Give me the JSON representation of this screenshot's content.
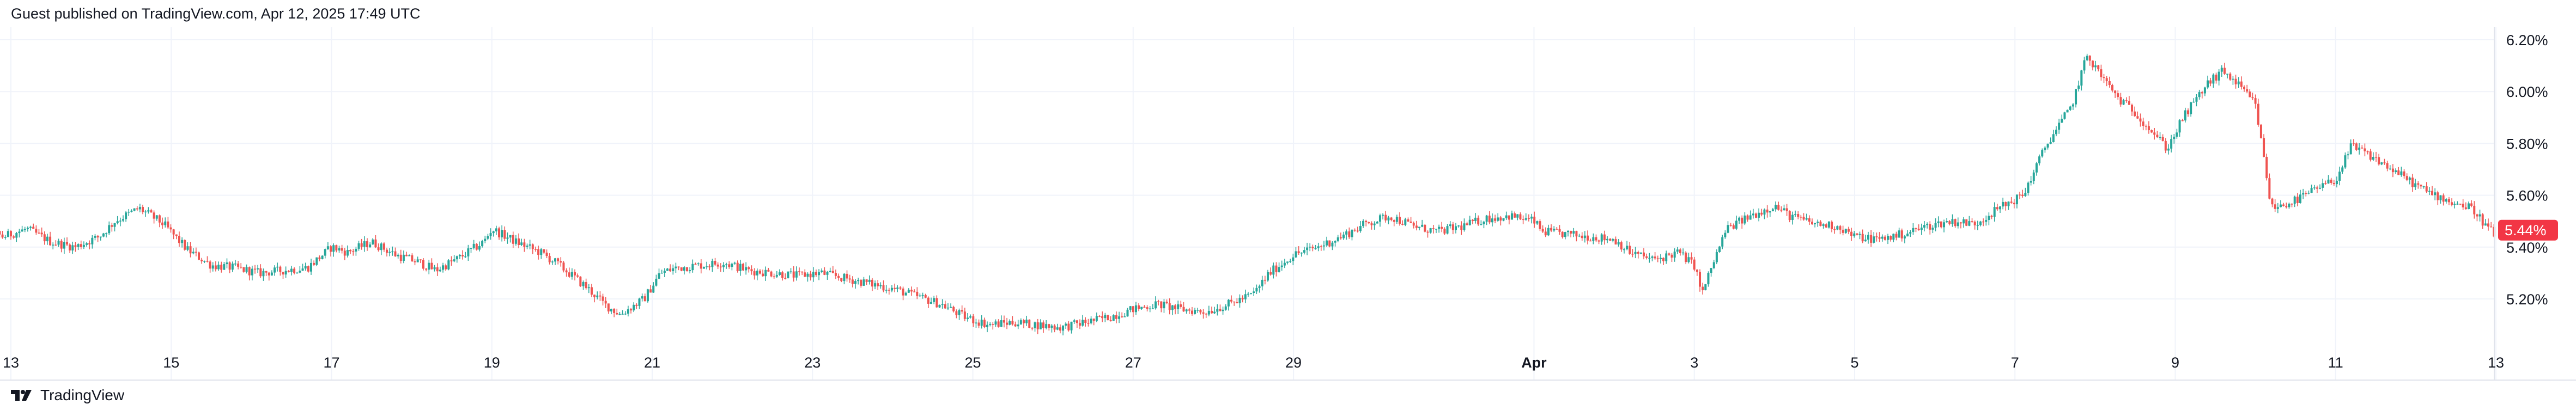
{
  "header": {
    "published": "Guest published on TradingView.com, Apr 12, 2025 17:49 UTC"
  },
  "footer": {
    "brand": "TradingView",
    "logo_icon": "tradingview-logo-icon"
  },
  "colors": {
    "up": "#26a69a",
    "down": "#ef5350",
    "grid": "#f0f3fa",
    "axis_text": "#131722",
    "tag_bg": "#f23645"
  },
  "chart_data": {
    "type": "candlestick",
    "title": "",
    "xlabel": "",
    "ylabel": "",
    "ylim": [
      5.05,
      6.24
    ],
    "y_ticks": [
      "5.20%",
      "5.40%",
      "5.60%",
      "5.80%",
      "6.00%",
      "6.20%"
    ],
    "y_tick_values": [
      5.2,
      5.4,
      5.6,
      5.8,
      6.0,
      6.2
    ],
    "x_ticks": [
      {
        "label": "13",
        "day": 0,
        "bold": false
      },
      {
        "label": "15",
        "day": 2,
        "bold": false
      },
      {
        "label": "17",
        "day": 4,
        "bold": false
      },
      {
        "label": "19",
        "day": 6,
        "bold": false
      },
      {
        "label": "21",
        "day": 8,
        "bold": false
      },
      {
        "label": "23",
        "day": 10,
        "bold": false
      },
      {
        "label": "25",
        "day": 12,
        "bold": false
      },
      {
        "label": "27",
        "day": 14,
        "bold": false
      },
      {
        "label": "29",
        "day": 16,
        "bold": false
      },
      {
        "label": "Apr",
        "day": 19,
        "bold": true
      },
      {
        "label": "3",
        "day": 21,
        "bold": false
      },
      {
        "label": "5",
        "day": 23,
        "bold": false
      },
      {
        "label": "7",
        "day": 25,
        "bold": false
      },
      {
        "label": "9",
        "day": 27,
        "bold": false
      },
      {
        "label": "11",
        "day": 29,
        "bold": false
      },
      {
        "label": "13",
        "day": 31,
        "bold": false
      }
    ],
    "x_range_days": [
      -0.7,
      31.0
    ],
    "last_price_label": "5.44%",
    "last_price": 5.44,
    "series": [
      {
        "values_day_close": [
          [
            -0.7,
            5.43
          ],
          [
            -0.4,
            5.48
          ],
          [
            -0.1,
            5.44
          ],
          [
            0.2,
            5.47
          ],
          [
            0.5,
            5.42
          ],
          [
            0.8,
            5.4
          ],
          [
            1.1,
            5.44
          ],
          [
            1.3,
            5.5
          ],
          [
            1.6,
            5.55
          ],
          [
            1.9,
            5.49
          ],
          [
            2.2,
            5.39
          ],
          [
            2.5,
            5.33
          ],
          [
            2.8,
            5.32
          ],
          [
            3.1,
            5.3
          ],
          [
            3.4,
            5.31
          ],
          [
            3.7,
            5.32
          ],
          [
            4.0,
            5.4
          ],
          [
            4.2,
            5.38
          ],
          [
            4.5,
            5.42
          ],
          [
            4.8,
            5.37
          ],
          [
            5.1,
            5.34
          ],
          [
            5.3,
            5.31
          ],
          [
            5.6,
            5.36
          ],
          [
            5.9,
            5.42
          ],
          [
            6.0,
            5.47
          ],
          [
            6.3,
            5.42
          ],
          [
            6.6,
            5.38
          ],
          [
            6.8,
            5.34
          ],
          [
            7.0,
            5.29
          ],
          [
            7.2,
            5.24
          ],
          [
            7.4,
            5.18
          ],
          [
            7.6,
            5.14
          ],
          [
            7.9,
            5.2
          ],
          [
            8.1,
            5.3
          ],
          [
            8.3,
            5.32
          ],
          [
            8.6,
            5.33
          ],
          [
            8.9,
            5.34
          ],
          [
            9.2,
            5.31
          ],
          [
            9.5,
            5.3
          ],
          [
            9.8,
            5.29
          ],
          [
            10.1,
            5.3
          ],
          [
            10.4,
            5.28
          ],
          [
            10.7,
            5.26
          ],
          [
            11.0,
            5.24
          ],
          [
            11.3,
            5.21
          ],
          [
            11.6,
            5.18
          ],
          [
            11.9,
            5.13
          ],
          [
            12.2,
            5.1
          ],
          [
            12.5,
            5.11
          ],
          [
            12.8,
            5.1
          ],
          [
            13.1,
            5.09
          ],
          [
            13.4,
            5.11
          ],
          [
            13.7,
            5.13
          ],
          [
            14.0,
            5.16
          ],
          [
            14.3,
            5.18
          ],
          [
            14.6,
            5.16
          ],
          [
            14.9,
            5.15
          ],
          [
            15.2,
            5.18
          ],
          [
            15.5,
            5.22
          ],
          [
            15.7,
            5.3
          ],
          [
            16.0,
            5.37
          ],
          [
            16.3,
            5.4
          ],
          [
            16.6,
            5.44
          ],
          [
            16.9,
            5.49
          ],
          [
            17.2,
            5.52
          ],
          [
            17.5,
            5.48
          ],
          [
            17.8,
            5.46
          ],
          [
            18.1,
            5.48
          ],
          [
            18.4,
            5.51
          ],
          [
            18.7,
            5.52
          ],
          [
            19.0,
            5.5
          ],
          [
            19.1,
            5.46
          ],
          [
            19.4,
            5.45
          ],
          [
            19.7,
            5.44
          ],
          [
            20.0,
            5.43
          ],
          [
            20.2,
            5.38
          ],
          [
            20.5,
            5.35
          ],
          [
            20.8,
            5.38
          ],
          [
            21.0,
            5.33
          ],
          [
            21.1,
            5.22
          ],
          [
            21.2,
            5.31
          ],
          [
            21.4,
            5.47
          ],
          [
            21.7,
            5.52
          ],
          [
            22.0,
            5.56
          ],
          [
            22.2,
            5.52
          ],
          [
            22.5,
            5.49
          ],
          [
            22.8,
            5.48
          ],
          [
            23.0,
            5.44
          ],
          [
            23.3,
            5.43
          ],
          [
            23.6,
            5.45
          ],
          [
            23.9,
            5.48
          ],
          [
            24.2,
            5.5
          ],
          [
            24.5,
            5.49
          ],
          [
            24.8,
            5.55
          ],
          [
            25.1,
            5.6
          ],
          [
            25.4,
            5.8
          ],
          [
            25.7,
            5.94
          ],
          [
            25.9,
            6.14
          ],
          [
            26.1,
            6.05
          ],
          [
            26.3,
            5.97
          ],
          [
            26.5,
            5.92
          ],
          [
            26.7,
            5.85
          ],
          [
            26.9,
            5.78
          ],
          [
            27.1,
            5.9
          ],
          [
            27.4,
            6.03
          ],
          [
            27.6,
            6.08
          ],
          [
            27.8,
            6.02
          ],
          [
            28.0,
            5.95
          ],
          [
            28.2,
            5.55
          ],
          [
            28.5,
            5.58
          ],
          [
            28.8,
            5.63
          ],
          [
            29.0,
            5.66
          ],
          [
            29.2,
            5.79
          ],
          [
            29.5,
            5.74
          ],
          [
            29.8,
            5.68
          ],
          [
            30.1,
            5.62
          ],
          [
            30.4,
            5.58
          ],
          [
            30.7,
            5.55
          ],
          [
            31.0,
            5.44
          ]
        ]
      }
    ]
  }
}
